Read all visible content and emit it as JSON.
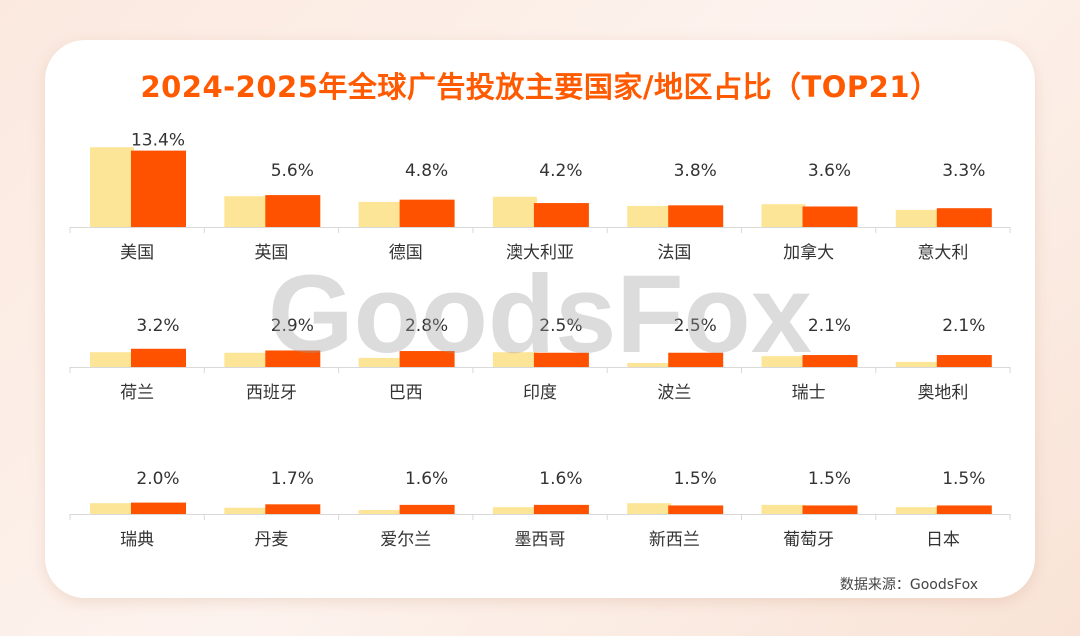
{
  "chart_data": {
    "type": "bar",
    "title": "2024-2025年全球广告投放主要国家/地区占比（TOP21）",
    "source": "数据来源：GoodsFox",
    "watermark": "GoodsFox",
    "unit": "%",
    "colors": {
      "earlier": "#fde597",
      "later": "#ff5200",
      "title": "#ff5a00"
    },
    "categories": [
      "美国",
      "英国",
      "德国",
      "澳大利亚",
      "法国",
      "加拿大",
      "意大利",
      "荷兰",
      "西班牙",
      "巴西",
      "印度",
      "波兰",
      "瑞士",
      "奥地利",
      "瑞典",
      "丹麦",
      "爱尔兰",
      "墨西哥",
      "新西兰",
      "葡萄牙",
      "日本"
    ],
    "series": [
      {
        "values": [
          14.0,
          5.4,
          4.4,
          5.3,
          3.7,
          4.0,
          3.0,
          2.6,
          2.5,
          1.6,
          2.6,
          0.7,
          1.9,
          0.9,
          1.9,
          1.1,
          0.7,
          1.2,
          1.9,
          1.6,
          1.2
        ]
      },
      {
        "values": [
          13.4,
          5.6,
          4.8,
          4.2,
          3.8,
          3.6,
          3.3,
          3.2,
          2.9,
          2.8,
          2.5,
          2.5,
          2.1,
          2.1,
          2.0,
          1.7,
          1.6,
          1.6,
          1.5,
          1.5,
          1.5
        ]
      }
    ],
    "data_labels": [
      "13.4%",
      "5.6%",
      "4.8%",
      "4.2%",
      "3.8%",
      "3.6%",
      "3.3%",
      "3.2%",
      "2.9%",
      "2.8%",
      "2.5%",
      "2.5%",
      "2.1%",
      "2.1%",
      "2.0%",
      "1.7%",
      "1.6%",
      "1.6%",
      "1.5%",
      "1.5%",
      "1.5%"
    ]
  }
}
